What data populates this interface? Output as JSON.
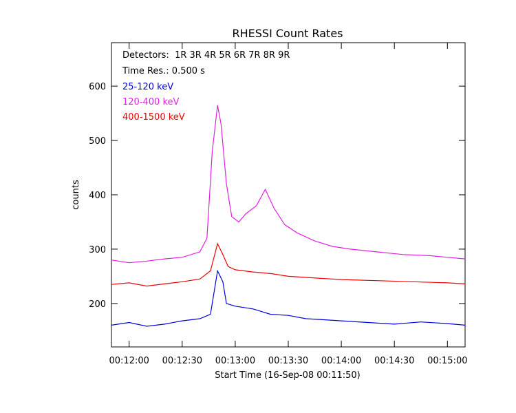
{
  "chart_data": {
    "type": "line",
    "title": "RHESSI Count Rates",
    "xlabel": "Start Time (16-Sep-08 00:11:50)",
    "ylabel": "counts",
    "x_unit": "time",
    "xlim": [
      "00:11:50",
      "00:15:10"
    ],
    "ylim": [
      120,
      680
    ],
    "x_ticks": [
      "00:12:00",
      "00:12:30",
      "00:13:00",
      "00:13:30",
      "00:14:00",
      "00:14:30",
      "00:15:00"
    ],
    "y_ticks": [
      200,
      300,
      400,
      500,
      600
    ],
    "grid": false,
    "annotations": [
      "Detectors:  1R 3R 4R 5R 6R 7R 8R 9R",
      "Time Res.: 0.500 s"
    ],
    "legend_position": "top-left",
    "series": [
      {
        "name": "25-120 keV",
        "color": "#0000dd",
        "points": [
          [
            "00:11:50",
            160
          ],
          [
            "00:12:00",
            165
          ],
          [
            "00:12:10",
            158
          ],
          [
            "00:12:20",
            162
          ],
          [
            "00:12:30",
            168
          ],
          [
            "00:12:40",
            172
          ],
          [
            "00:12:46",
            180
          ],
          [
            "00:12:50",
            260
          ],
          [
            "00:12:53",
            240
          ],
          [
            "00:12:55",
            200
          ],
          [
            "00:13:00",
            195
          ],
          [
            "00:13:10",
            190
          ],
          [
            "00:13:20",
            180
          ],
          [
            "00:13:30",
            178
          ],
          [
            "00:13:40",
            172
          ],
          [
            "00:13:50",
            170
          ],
          [
            "00:14:00",
            168
          ],
          [
            "00:14:15",
            165
          ],
          [
            "00:14:30",
            162
          ],
          [
            "00:14:45",
            166
          ],
          [
            "00:15:00",
            163
          ],
          [
            "00:15:10",
            160
          ]
        ]
      },
      {
        "name": "120-400 keV",
        "color": "#e020e0",
        "points": [
          [
            "00:11:50",
            280
          ],
          [
            "00:12:00",
            275
          ],
          [
            "00:12:10",
            278
          ],
          [
            "00:12:20",
            282
          ],
          [
            "00:12:30",
            285
          ],
          [
            "00:12:40",
            295
          ],
          [
            "00:12:44",
            320
          ],
          [
            "00:12:47",
            480
          ],
          [
            "00:12:50",
            565
          ],
          [
            "00:12:52",
            530
          ],
          [
            "00:12:55",
            420
          ],
          [
            "00:12:58",
            360
          ],
          [
            "00:13:02",
            350
          ],
          [
            "00:13:06",
            365
          ],
          [
            "00:13:12",
            380
          ],
          [
            "00:13:17",
            410
          ],
          [
            "00:13:22",
            375
          ],
          [
            "00:13:28",
            345
          ],
          [
            "00:13:35",
            330
          ],
          [
            "00:13:45",
            315
          ],
          [
            "00:13:55",
            305
          ],
          [
            "00:14:05",
            300
          ],
          [
            "00:14:20",
            295
          ],
          [
            "00:14:35",
            290
          ],
          [
            "00:14:50",
            288
          ],
          [
            "00:15:00",
            285
          ],
          [
            "00:15:10",
            282
          ]
        ]
      },
      {
        "name": "400-1500 keV",
        "color": "#ee0000",
        "points": [
          [
            "00:11:50",
            235
          ],
          [
            "00:12:00",
            238
          ],
          [
            "00:12:10",
            232
          ],
          [
            "00:12:20",
            236
          ],
          [
            "00:12:30",
            240
          ],
          [
            "00:12:40",
            245
          ],
          [
            "00:12:46",
            260
          ],
          [
            "00:12:50",
            310
          ],
          [
            "00:12:53",
            290
          ],
          [
            "00:12:56",
            268
          ],
          [
            "00:13:00",
            262
          ],
          [
            "00:13:10",
            258
          ],
          [
            "00:13:20",
            255
          ],
          [
            "00:13:30",
            250
          ],
          [
            "00:13:40",
            248
          ],
          [
            "00:13:50",
            246
          ],
          [
            "00:14:00",
            244
          ],
          [
            "00:14:20",
            242
          ],
          [
            "00:14:40",
            240
          ],
          [
            "00:15:00",
            238
          ],
          [
            "00:15:10",
            236
          ]
        ]
      }
    ]
  }
}
